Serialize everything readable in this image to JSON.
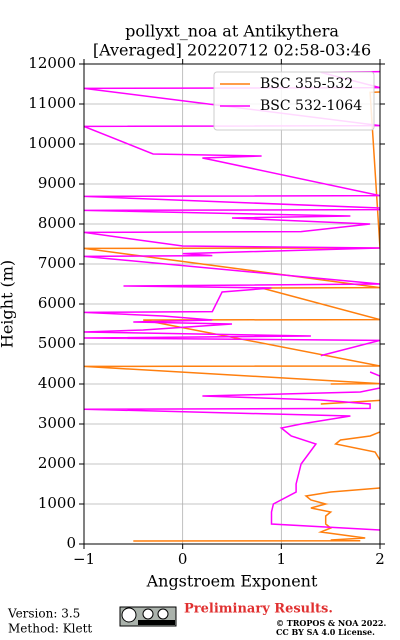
{
  "chart_data": {
    "type": "line",
    "title": "pollyxt_noa at Antikythera",
    "subtitle": "[Averaged] 20220712 02:58-03:46",
    "xlabel": "Angstroem Exponent",
    "ylabel": "Height (m)",
    "xlim": [
      -1,
      2
    ],
    "ylim": [
      0,
      12000
    ],
    "xticks": [
      {
        "value": -1,
        "label": "−1"
      },
      0,
      1,
      2
    ],
    "yticks": [
      0,
      1000,
      2000,
      3000,
      4000,
      5000,
      6000,
      7000,
      8000,
      9000,
      10000,
      11000,
      12000
    ],
    "grid": true,
    "legend": "upper right",
    "series": [
      {
        "name": "BSC 355-532",
        "color": "#ff7f0e",
        "y": [
          75,
          80,
          100,
          150,
          200,
          300,
          400,
          500,
          700,
          800,
          900,
          1000,
          1100,
          1200,
          1300,
          1400,
          1900,
          2100,
          2300,
          2500,
          2600,
          2700,
          2800,
          3490,
          3500,
          3590,
          3600,
          4000,
          4010,
          4440,
          4450,
          5600,
          5610,
          6400,
          6410,
          7390,
          7400,
          11290,
          11300
        ],
        "values": [
          -0.5,
          1.8,
          1.5,
          1.85,
          1.7,
          1.4,
          1.5,
          1.45,
          1.45,
          1.5,
          1.3,
          1.45,
          1.3,
          1.25,
          1.5,
          2.0,
          null,
          2.0,
          1.95,
          1.55,
          1.6,
          1.9,
          2.0,
          null,
          1.4,
          2.0,
          null,
          1.5,
          2.0,
          -1.0,
          2.0,
          -0.4,
          2.0,
          0.8,
          2.0,
          -1.0,
          2.0,
          1.9,
          2.0
        ]
      },
      {
        "name": "BSC 532-1064",
        "color": "#ff00ff",
        "y": [
          350,
          500,
          800,
          1000,
          1300,
          1500,
          2000,
          2500,
          2700,
          2900,
          3000,
          3200,
          3370,
          3390,
          3500,
          3600,
          3700,
          3800,
          3900,
          4200,
          4300,
          4700,
          4710,
          5090,
          5150,
          5200,
          5300,
          5350,
          5500,
          5550,
          5600,
          5700,
          5790,
          5810,
          6300,
          6400,
          6450,
          6500,
          7190,
          7210,
          7260,
          7400,
          7450,
          7790,
          7810,
          8000,
          8150,
          8200,
          8340,
          8360,
          8400,
          8690,
          8710,
          9600,
          9650,
          9700,
          9750,
          10440,
          10460,
          11390,
          11410,
          11790,
          11810
        ],
        "values": [
          2.0,
          0.9,
          0.9,
          0.92,
          1.15,
          1.15,
          1.2,
          1.35,
          1.1,
          1.0,
          1.2,
          1.7,
          -1.0,
          1.9,
          1.9,
          1.4,
          0.2,
          1.8,
          2.0,
          2.0,
          1.9,
          null,
          1.4,
          2.0,
          -1.0,
          1.3,
          -1.0,
          -0.4,
          0.5,
          -0.5,
          0.3,
          -0.2,
          -1.0,
          0.3,
          0.4,
          0.9,
          -0.6,
          2.0,
          -1.0,
          0.3,
          0.0,
          2.0,
          0.0,
          -1.0,
          1.2,
          1.9,
          0.5,
          1.7,
          -1.0,
          2.0,
          2.0,
          -1.0,
          2.0,
          0.3,
          0.2,
          0.8,
          -0.3,
          -1.0,
          2.0,
          -1.0,
          2.0,
          1.4,
          2.0
        ]
      }
    ],
    "version": "Version: 3.5",
    "method": "Method: Klett",
    "notice": "Preliminary Results.",
    "copyright": "© TROPOS & NOA 2022.",
    "license": "CC BY SA 4.0 License."
  }
}
